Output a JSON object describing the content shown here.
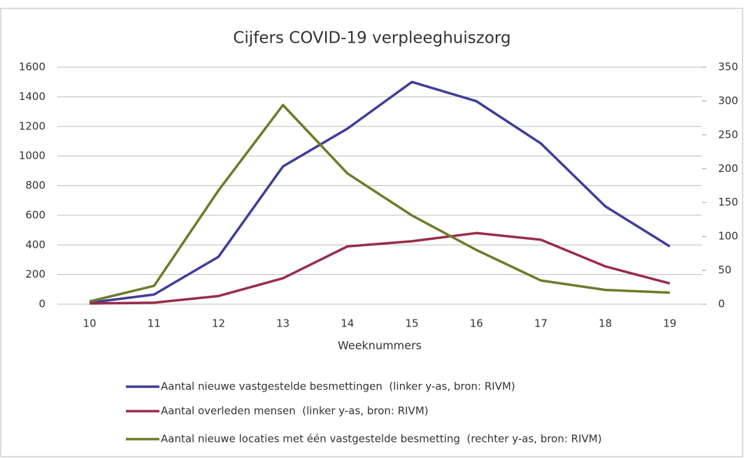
{
  "chart_data": {
    "type": "line",
    "title": "Cijfers COVID-19 verpleeghuiszorg",
    "x_label": "Weeknummers",
    "categories": [
      "10",
      "11",
      "12",
      "13",
      "14",
      "15",
      "16",
      "17",
      "18",
      "19"
    ],
    "series": [
      {
        "name": "Aantal nieuwe vastgestelde besmettingen  (linker y-as, bron: RIVM)",
        "color": "#3d3f99",
        "values": [
          10,
          65,
          320,
          930,
          1185,
          1500,
          1370,
          1085,
          660,
          390
        ]
      },
      {
        "name": "Aantal overleden mensen  (linker y-as, bron: RIVM)",
        "color": "#9a2c4b",
        "values": [
          5,
          10,
          55,
          175,
          390,
          425,
          480,
          435,
          255,
          140
        ]
      },
      {
        "name": "Aantal nieuwe locaties met één vastgestelde besmetting  (rechter y-as, bron: RIVM)",
        "color": "#6a7d2a",
        "axis": "y2",
        "values": [
          4,
          27,
          168,
          294,
          193,
          131,
          80,
          35,
          21,
          17
        ]
      }
    ],
    "ylim": [
      0,
      1600
    ],
    "yticks": [
      0,
      200,
      400,
      600,
      800,
      1000,
      1200,
      1400,
      1600
    ],
    "y2lim": [
      0,
      350
    ],
    "y2ticks": [
      0,
      50,
      100,
      150,
      200,
      250,
      300,
      350
    ],
    "grid": true
  }
}
